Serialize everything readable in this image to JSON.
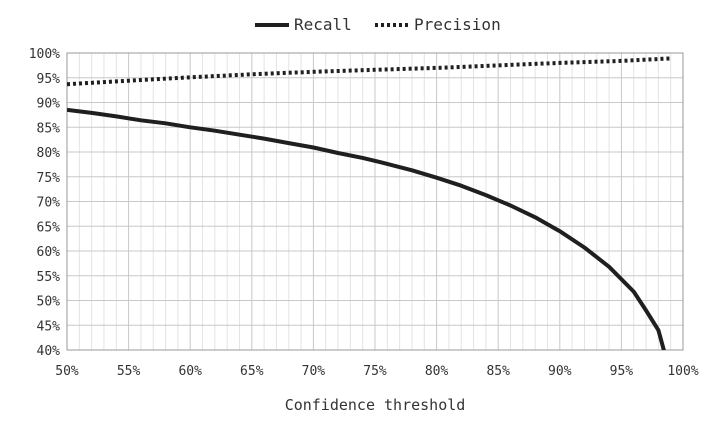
{
  "chart_data": {
    "type": "line",
    "title": "",
    "xlabel": "Confidence threshold",
    "ylabel": "",
    "xlim": [
      0.5,
      1.0
    ],
    "ylim": [
      0.4,
      1.0
    ],
    "x_ticks": [
      0.5,
      0.55,
      0.6,
      0.65,
      0.7,
      0.75,
      0.8,
      0.85,
      0.9,
      0.95,
      1.0
    ],
    "x_tick_labels": [
      "50%",
      "55%",
      "60%",
      "65%",
      "70%",
      "75%",
      "80%",
      "85%",
      "90%",
      "95%",
      "100%"
    ],
    "y_ticks": [
      0.4,
      0.45,
      0.5,
      0.55,
      0.6,
      0.65,
      0.7,
      0.75,
      0.8,
      0.85,
      0.9,
      0.95,
      1.0
    ],
    "y_tick_labels": [
      "40%",
      "45%",
      "50%",
      "55%",
      "60%",
      "65%",
      "70%",
      "75%",
      "80%",
      "85%",
      "90%",
      "95%",
      "100%"
    ],
    "grid": true,
    "legend_position": "top-center",
    "series": [
      {
        "name": "Recall",
        "style": "solid",
        "color": "#1f1f1f",
        "x": [
          0.5,
          0.52,
          0.54,
          0.56,
          0.58,
          0.6,
          0.62,
          0.64,
          0.66,
          0.68,
          0.7,
          0.72,
          0.74,
          0.76,
          0.78,
          0.8,
          0.82,
          0.84,
          0.86,
          0.88,
          0.9,
          0.92,
          0.94,
          0.96,
          0.97,
          0.98,
          0.985
        ],
        "y": [
          0.885,
          0.879,
          0.872,
          0.864,
          0.858,
          0.85,
          0.843,
          0.835,
          0.827,
          0.818,
          0.809,
          0.798,
          0.788,
          0.776,
          0.763,
          0.748,
          0.732,
          0.713,
          0.692,
          0.668,
          0.64,
          0.607,
          0.568,
          0.518,
          0.48,
          0.44,
          0.395
        ]
      },
      {
        "name": "Precision",
        "style": "dotted",
        "color": "#1f1f1f",
        "x": [
          0.5,
          0.55,
          0.6,
          0.65,
          0.7,
          0.75,
          0.8,
          0.85,
          0.9,
          0.95,
          0.99
        ],
        "y": [
          0.937,
          0.944,
          0.951,
          0.957,
          0.962,
          0.966,
          0.97,
          0.975,
          0.98,
          0.984,
          0.989
        ]
      }
    ]
  }
}
